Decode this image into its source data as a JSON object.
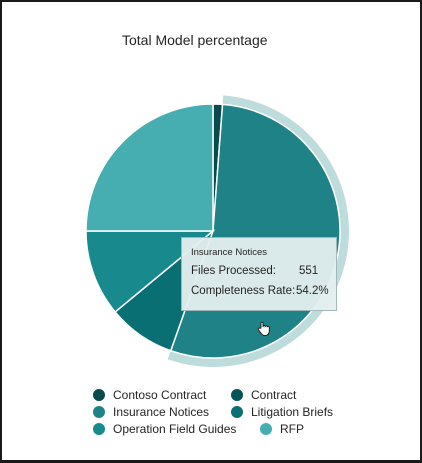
{
  "chart_data": {
    "type": "pie",
    "title": "Total Model percentage",
    "slices": [
      {
        "label": "Contoso Contract",
        "value": 1.2,
        "color": "#0B4A4C"
      },
      {
        "label": "Contract",
        "value": 0.0,
        "color": "#075457"
      },
      {
        "label": "Insurance Notices",
        "value": 54.2,
        "color": "#1E8286"
      },
      {
        "label": "Litigation Briefs",
        "value": 8.6,
        "color": "#0A6F72"
      },
      {
        "label": "Operation Field Guides",
        "value": 11.0,
        "color": "#188A8E"
      },
      {
        "label": "RFP",
        "value": 25.0,
        "color": "#46AEB1"
      }
    ],
    "highlighted_slice": "Insurance Notices",
    "legend_position": "bottom"
  },
  "tooltip": {
    "title": "Insurance Notices",
    "files_label": "Files Processed:",
    "files_value": "551",
    "rate_label": "Completeness Rate:",
    "rate_value": "54.2%"
  },
  "colors": {
    "highlight_ring": "#BFDCDD",
    "slice_border": "#ffffff"
  }
}
